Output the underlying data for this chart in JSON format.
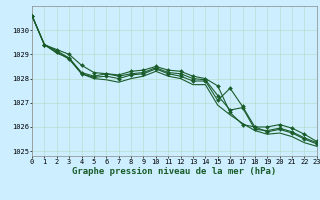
{
  "title": "Graphe pression niveau de la mer (hPa)",
  "bg_color": "#cceeff",
  "grid_color": "#b8ddd0",
  "line_color": "#1a5c2a",
  "xlim": [
    0,
    23
  ],
  "ylim": [
    1024.8,
    1031.0
  ],
  "yticks": [
    1025,
    1026,
    1027,
    1028,
    1029,
    1030
  ],
  "xticks": [
    0,
    1,
    2,
    3,
    4,
    5,
    6,
    7,
    8,
    9,
    10,
    11,
    12,
    13,
    14,
    15,
    16,
    17,
    18,
    19,
    20,
    21,
    22,
    23
  ],
  "series": [
    {
      "x": [
        0,
        1,
        2,
        3,
        4,
        5,
        6,
        7,
        8,
        9,
        10,
        11,
        12,
        13,
        14,
        15,
        16,
        17,
        18,
        19,
        20,
        21,
        22,
        23
      ],
      "y": [
        1030.6,
        1029.4,
        1029.2,
        1029.0,
        1028.55,
        1028.25,
        1028.2,
        1028.15,
        1028.3,
        1028.35,
        1028.5,
        1028.35,
        1028.3,
        1028.1,
        1028.0,
        1027.7,
        1026.6,
        1026.1,
        1026.0,
        1026.0,
        1026.1,
        1025.95,
        1025.7,
        1025.4
      ],
      "marker": "D",
      "markersize": 2.0,
      "lw": 0.8
    },
    {
      "x": [
        0,
        1,
        2,
        3,
        4,
        5,
        6,
        7,
        8,
        9,
        10,
        11,
        12,
        13,
        14,
        15,
        16,
        17,
        18,
        19,
        20,
        21,
        22,
        23
      ],
      "y": [
        1030.6,
        1029.4,
        1029.15,
        1028.85,
        1028.25,
        1028.1,
        1028.2,
        1028.1,
        1028.2,
        1028.25,
        1028.45,
        1028.25,
        1028.2,
        1028.0,
        1027.95,
        1027.3,
        1026.7,
        1026.8,
        1025.9,
        1025.85,
        1025.95,
        1025.8,
        1025.55,
        1025.35
      ],
      "marker": "D",
      "markersize": 2.0,
      "lw": 0.8
    },
    {
      "x": [
        0,
        1,
        2,
        3,
        4,
        5,
        6,
        7,
        8,
        9,
        10,
        11,
        12,
        13,
        14,
        15,
        16,
        17,
        18,
        19,
        20,
        21,
        22,
        23
      ],
      "y": [
        1030.6,
        1029.4,
        1029.1,
        1028.8,
        1028.2,
        1028.05,
        1028.1,
        1028.0,
        1028.15,
        1028.2,
        1028.4,
        1028.2,
        1028.1,
        1027.9,
        1027.9,
        1027.1,
        1027.6,
        1026.85,
        1026.0,
        1025.8,
        1025.9,
        1025.75,
        1025.5,
        1025.3
      ],
      "marker": "D",
      "markersize": 2.0,
      "lw": 0.8
    },
    {
      "x": [
        0,
        1,
        2,
        3,
        4,
        5,
        6,
        7,
        8,
        9,
        10,
        11,
        12,
        13,
        14,
        15,
        16,
        17,
        18,
        19,
        20,
        21,
        22,
        23
      ],
      "y": [
        1030.6,
        1029.4,
        1029.05,
        1028.85,
        1028.2,
        1028.0,
        1027.95,
        1027.85,
        1028.0,
        1028.1,
        1028.3,
        1028.1,
        1028.0,
        1027.75,
        1027.75,
        1026.9,
        1026.5,
        1026.15,
        1025.85,
        1025.7,
        1025.75,
        1025.6,
        1025.35,
        1025.2
      ],
      "marker": null,
      "markersize": 0,
      "lw": 0.8
    }
  ],
  "ylabel_fontsize": 5.5,
  "xlabel_fontsize": 6.5,
  "tick_labelsize": 5.0,
  "label_color": "#1a5c2a"
}
